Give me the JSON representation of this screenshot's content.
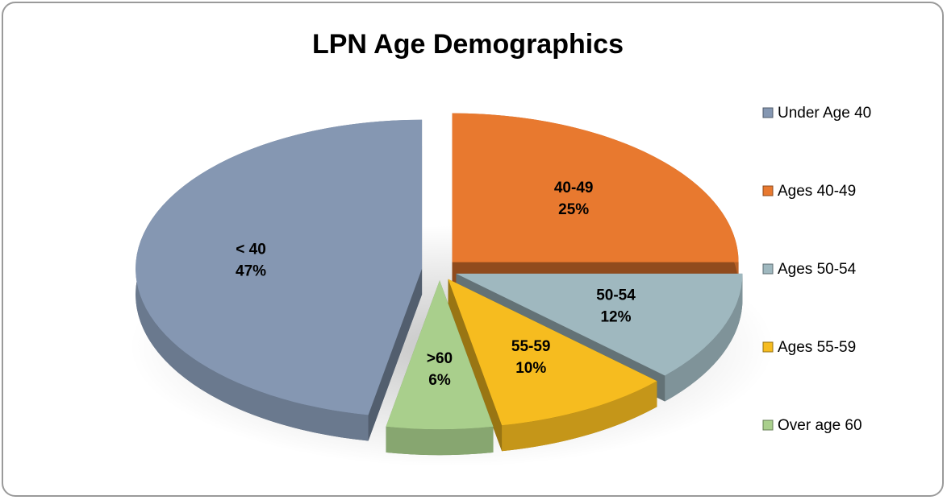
{
  "chart_data": {
    "type": "pie",
    "title": "LPN Age Demographics",
    "categories": [
      "Under Age 40",
      "Ages 40-49",
      "Ages 50-54",
      "Ages 55-59",
      "Over age 60"
    ],
    "slice_labels": [
      "< 40",
      "40-49",
      "50-54",
      "55-59",
      ">60"
    ],
    "values": [
      47,
      25,
      12,
      10,
      6
    ],
    "value_labels": [
      "47%",
      "25%",
      "12%",
      "10%",
      "6%"
    ],
    "colors": [
      "#8597b2",
      "#e8792f",
      "#9fb8bf",
      "#f6bc1f",
      "#a9cf8c"
    ],
    "legend": "right"
  }
}
